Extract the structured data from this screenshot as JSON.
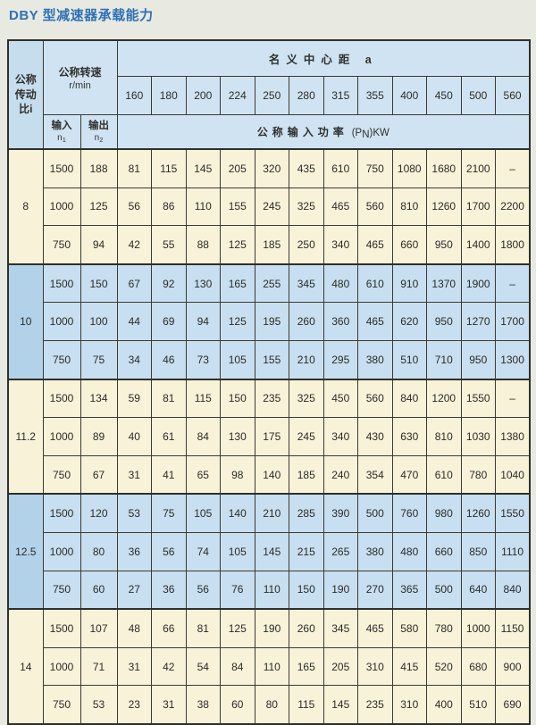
{
  "page": {
    "title": "DBY 型减速器承载能力"
  },
  "colors": {
    "title_blue": "#2e71b5",
    "page_bg": "#e8e9e1",
    "header_bg": "#cfe3f2",
    "cream_block_bg": "#f8f2d9",
    "blue_block_bg": "#c7dff0",
    "blue_ratio_cell_bg": "#b2d2ea",
    "border": "#3b3b33"
  },
  "table": {
    "header": {
      "ratio_label": "公称\n传动\n比i",
      "speed_label": "公称转速",
      "speed_unit": "r/min",
      "center_distance_label": "名义中心距 a",
      "center_distances": [
        "160",
        "180",
        "200",
        "224",
        "250",
        "280",
        "315",
        "355",
        "400",
        "450",
        "500",
        "560"
      ],
      "input_label": "输入",
      "input_sub_base": "n",
      "input_sub_index": "1",
      "output_label": "输出",
      "output_sub_base": "n",
      "output_sub_index": "2",
      "power_label_cn": "公称输入功率",
      "power_label_paren": "(P",
      "power_label_sub": "N",
      "power_label_suffix": ")KW"
    },
    "blocks": [
      {
        "ratio": "8",
        "tone": "cream",
        "rows": [
          {
            "input": "1500",
            "output": "188",
            "values": [
              "81",
              "115",
              "145",
              "205",
              "320",
              "435",
              "610",
              "750",
              "1080",
              "1680",
              "2100",
              "–"
            ]
          },
          {
            "input": "1000",
            "output": "125",
            "values": [
              "56",
              "86",
              "110",
              "155",
              "245",
              "325",
              "465",
              "560",
              "810",
              "1260",
              "1700",
              "2200"
            ]
          },
          {
            "input": "750",
            "output": "94",
            "values": [
              "42",
              "55",
              "88",
              "125",
              "185",
              "250",
              "340",
              "465",
              "660",
              "950",
              "1400",
              "1800"
            ]
          }
        ]
      },
      {
        "ratio": "10",
        "tone": "blue",
        "rows": [
          {
            "input": "1500",
            "output": "150",
            "values": [
              "67",
              "92",
              "130",
              "165",
              "255",
              "345",
              "480",
              "610",
              "910",
              "1370",
              "1900",
              "–"
            ]
          },
          {
            "input": "1000",
            "output": "100",
            "values": [
              "44",
              "69",
              "94",
              "125",
              "195",
              "260",
              "360",
              "465",
              "620",
              "950",
              "1270",
              "1700"
            ]
          },
          {
            "input": "750",
            "output": "75",
            "values": [
              "34",
              "46",
              "73",
              "105",
              "155",
              "210",
              "295",
              "380",
              "510",
              "710",
              "950",
              "1300"
            ]
          }
        ]
      },
      {
        "ratio": "11.2",
        "tone": "cream",
        "rows": [
          {
            "input": "1500",
            "output": "134",
            "values": [
              "59",
              "81",
              "115",
              "150",
              "235",
              "325",
              "450",
              "560",
              "840",
              "1200",
              "1550",
              "–"
            ]
          },
          {
            "input": "1000",
            "output": "89",
            "values": [
              "40",
              "61",
              "84",
              "130",
              "175",
              "245",
              "340",
              "430",
              "630",
              "810",
              "1030",
              "1380"
            ]
          },
          {
            "input": "750",
            "output": "67",
            "values": [
              "31",
              "41",
              "65",
              "98",
              "140",
              "185",
              "240",
              "354",
              "470",
              "610",
              "780",
              "1040"
            ]
          }
        ]
      },
      {
        "ratio": "12.5",
        "tone": "blue",
        "rows": [
          {
            "input": "1500",
            "output": "120",
            "values": [
              "53",
              "75",
              "105",
              "140",
              "210",
              "285",
              "390",
              "500",
              "760",
              "980",
              "1260",
              "1550"
            ]
          },
          {
            "input": "1000",
            "output": "80",
            "values": [
              "36",
              "56",
              "74",
              "105",
              "145",
              "215",
              "265",
              "380",
              "480",
              "660",
              "850",
              "1110"
            ]
          },
          {
            "input": "750",
            "output": "60",
            "values": [
              "27",
              "36",
              "56",
              "76",
              "110",
              "150",
              "190",
              "270",
              "365",
              "500",
              "640",
              "840"
            ]
          }
        ]
      },
      {
        "ratio": "14",
        "tone": "cream",
        "rows": [
          {
            "input": "1500",
            "output": "107",
            "values": [
              "48",
              "66",
              "81",
              "125",
              "190",
              "260",
              "345",
              "465",
              "580",
              "780",
              "1000",
              "1150"
            ]
          },
          {
            "input": "1000",
            "output": "71",
            "values": [
              "31",
              "42",
              "54",
              "84",
              "110",
              "165",
              "205",
              "310",
              "415",
              "520",
              "680",
              "900"
            ]
          },
          {
            "input": "750",
            "output": "53",
            "values": [
              "23",
              "31",
              "38",
              "60",
              "80",
              "115",
              "145",
              "235",
              "310",
              "400",
              "510",
              "690"
            ]
          }
        ]
      }
    ]
  }
}
